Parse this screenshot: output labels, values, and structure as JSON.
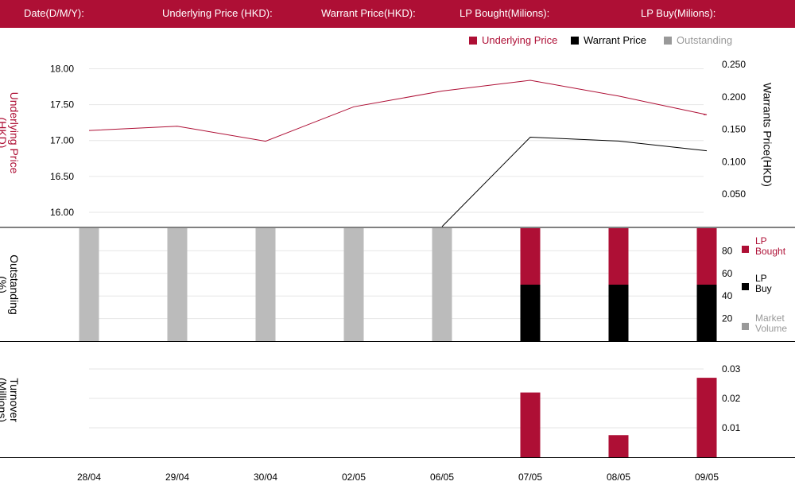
{
  "header": {
    "date_label": "Date(D/M/Y):",
    "underlying_label": "Underlying Price (HKD):",
    "warrant_label": "Warrant  Price(HKD):",
    "lp_bought_label": "LP Bought(Milions):",
    "lp_buy_label": "LP Buy(Milions):"
  },
  "legend": {
    "underlying": "Underlying Price",
    "warrant": "Warrant  Price",
    "outstanding": "Outstanding"
  },
  "colors": {
    "brand": "#ae0f35",
    "warrant": "#000000",
    "outstanding": "#bbbbbb",
    "legend_muted": "#999999",
    "grid": "#e6e6e6"
  },
  "axes": {
    "underlying_label_line1": "Underlying Price",
    "underlying_label_line2": "(HKD)",
    "warrant_label": "Warrants  Price(HKD)",
    "outstanding_label_line1": "Outstanding",
    "outstanding_label_line2": "(%)",
    "turnover_label_line1": "Turnover",
    "turnover_label_line2": "(Millions)"
  },
  "side_legend": [
    {
      "line1": "LP",
      "line2": "Bought",
      "color": "#ae0f35",
      "text_color": "#ae0f35"
    },
    {
      "line1": "LP",
      "line2": "Buy",
      "color": "#000000",
      "text_color": "#000000"
    },
    {
      "line1": "Market",
      "line2": "Volume",
      "color": "#999999",
      "text_color": "#999999"
    }
  ],
  "chart_data": {
    "type": "line",
    "categories": [
      "28/04",
      "29/04",
      "30/04",
      "02/05",
      "06/05",
      "07/05",
      "08/05",
      "09/05"
    ],
    "series": [
      {
        "name": "Underlying Price",
        "axis": "left",
        "values": [
          17.14,
          17.2,
          16.99,
          17.47,
          17.69,
          17.84,
          17.62,
          17.36
        ]
      },
      {
        "name": "Warrant  Price",
        "axis": "right",
        "values": [
          null,
          null,
          null,
          null,
          0.0,
          0.138,
          0.132,
          0.117
        ]
      },
      {
        "name": "Outstanding",
        "type": "bar",
        "values": [
          100,
          100,
          100,
          100,
          100,
          100,
          100,
          100
        ]
      },
      {
        "name": "LP Bought",
        "type": "bar",
        "values": [
          null,
          null,
          null,
          null,
          null,
          50,
          50,
          50
        ]
      },
      {
        "name": "LP Buy",
        "type": "bar",
        "values": [
          null,
          null,
          null,
          null,
          null,
          50,
          50,
          50
        ]
      },
      {
        "name": "Turnover",
        "type": "bar",
        "values": [
          0,
          0,
          0,
          0,
          0,
          0.022,
          0.0075,
          0.027
        ]
      }
    ],
    "y_left": {
      "ylim": [
        15.8,
        18.15
      ],
      "ticks": [
        "18.00",
        "17.50",
        "17.00",
        "16.50",
        "16.00"
      ]
    },
    "y_right": {
      "ylim": [
        0.0,
        0.26
      ],
      "ticks": [
        "0.250",
        "0.200",
        "0.150",
        "0.100",
        "0.050"
      ]
    },
    "y_outstanding": {
      "ylim": [
        0,
        100
      ],
      "ticks": [
        "80",
        "60",
        "40",
        "20"
      ]
    },
    "y_turnover": {
      "ylim": [
        0,
        0.03
      ],
      "ticks": [
        "0.03",
        "0.02",
        "0.01"
      ]
    },
    "grid": true,
    "legend_position": "top-right"
  }
}
